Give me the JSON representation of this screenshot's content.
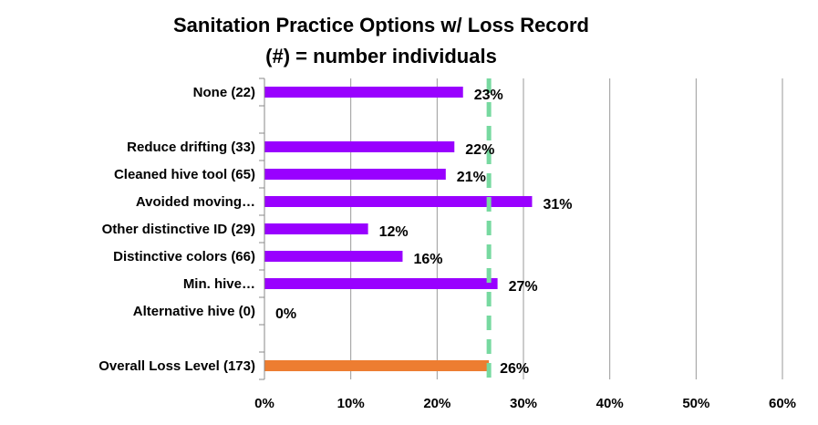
{
  "chart_data": {
    "type": "bar",
    "orientation": "horizontal",
    "title": "Sanitation Practice Options w/ Loss Record",
    "subtitle": "(#) = number individuals",
    "categories": [
      "None (22)",
      "",
      "Reduce drifting (33)",
      "Cleaned hive tool (65)",
      "Avoided moving…",
      "Other distinctive ID (29)",
      "Distinctive colors (66)",
      "Min. hive…",
      "Alternative hive (0)",
      "",
      "Overall Loss Level (173)"
    ],
    "values": [
      23,
      null,
      22,
      21,
      31,
      12,
      16,
      27,
      0,
      null,
      26
    ],
    "data_labels": [
      "23%",
      "",
      "22%",
      "21%",
      "31%",
      "12%",
      "16%",
      "27%",
      "0%",
      "",
      "26%"
    ],
    "bar_colors": [
      "#9900ff",
      null,
      "#9900ff",
      "#9900ff",
      "#9900ff",
      "#9900ff",
      "#9900ff",
      "#9900ff",
      "#9900ff",
      null,
      "#ed7d31"
    ],
    "xlim": [
      0,
      60
    ],
    "x_ticks": [
      0,
      10,
      20,
      30,
      40,
      50,
      60
    ],
    "x_tick_labels": [
      "0%",
      "10%",
      "20%",
      "30%",
      "40%",
      "50%",
      "60%"
    ],
    "reference_line": {
      "value": 26,
      "color": "#77d9a0",
      "style": "dashed"
    },
    "grid": "vertical",
    "legend": "none",
    "colors": {
      "series": "#9900ff",
      "overall": "#ed7d31",
      "grid": "#999999",
      "reference": "#77d9a0"
    }
  }
}
